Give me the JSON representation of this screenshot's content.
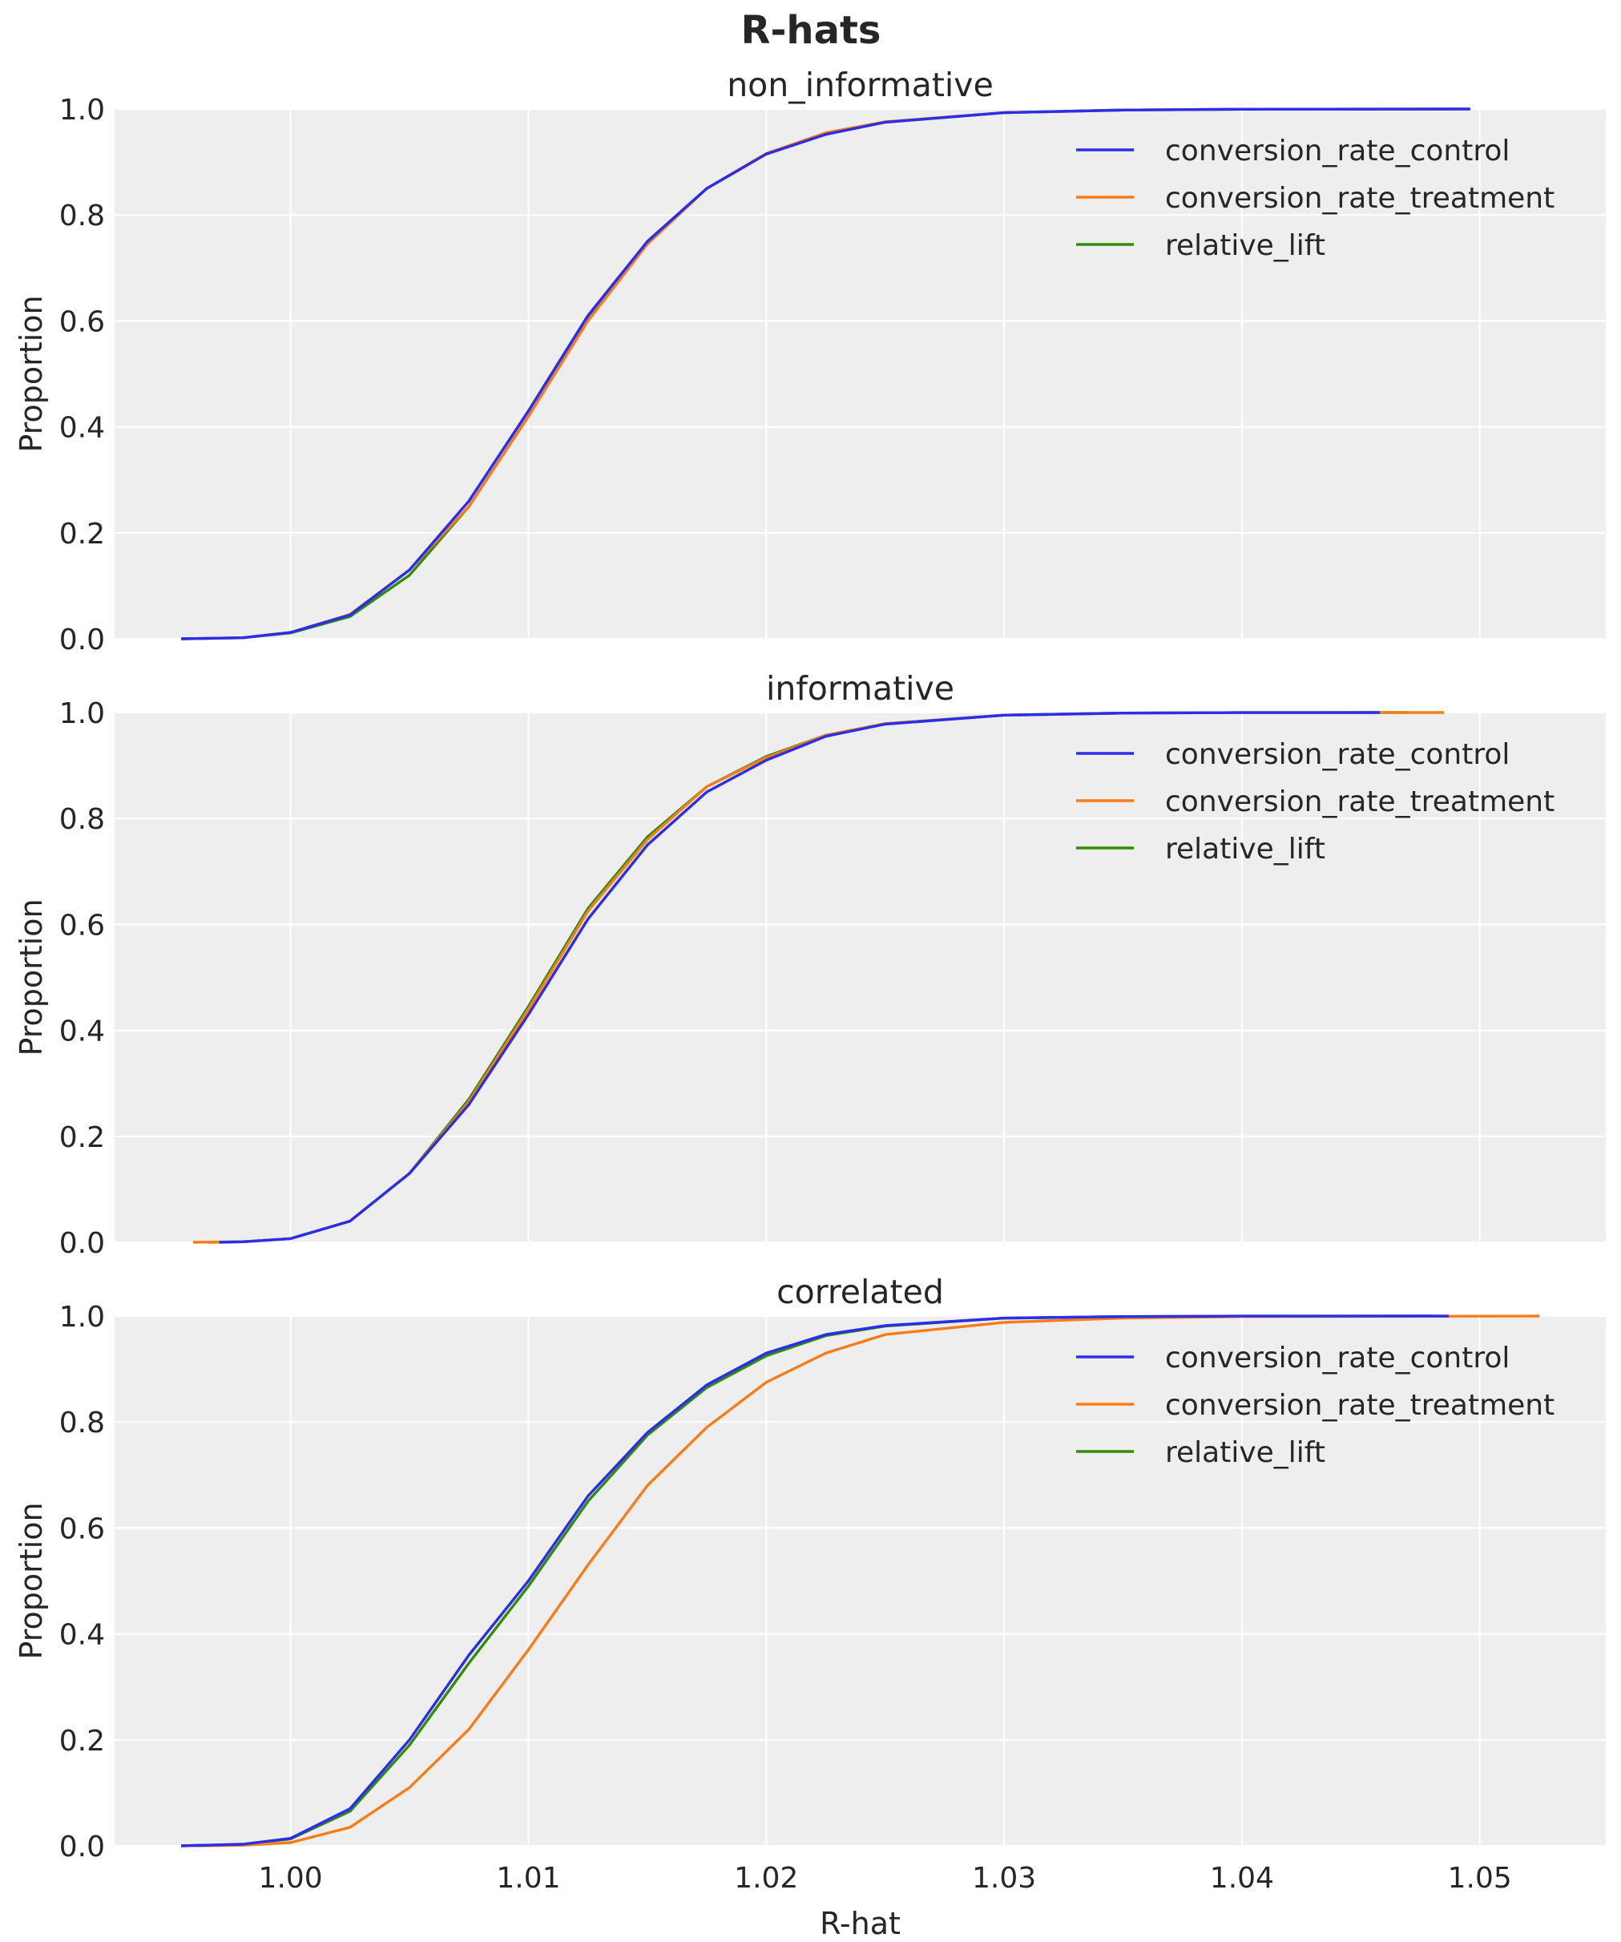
{
  "chart_data": [
    {
      "type": "line",
      "subtype": "ecdf",
      "title": "non_informative",
      "xlabel": "",
      "ylabel": "Proportion",
      "xlim": [
        0.9926,
        1.0553
      ],
      "ylim": [
        0.0,
        1.0
      ],
      "xticks": [
        "1.00",
        "1.01",
        "1.02",
        "1.03",
        "1.04",
        "1.05"
      ],
      "xtick_values": [
        1.0,
        1.01,
        1.02,
        1.03,
        1.04,
        1.05
      ],
      "xticks_visible": false,
      "yticks": [
        "0.0",
        "0.2",
        "0.4",
        "0.6",
        "0.8",
        "1.0"
      ],
      "ytick_values": [
        0.0,
        0.2,
        0.4,
        0.6,
        0.8,
        1.0
      ],
      "grid": true,
      "legend_position": "top-right",
      "series": [
        {
          "name": "conversion_rate_control",
          "color": "#2a2eec",
          "x": [
            0.9954,
            0.998,
            1.0,
            1.0025,
            1.005,
            1.0075,
            1.01,
            1.0125,
            1.015,
            1.0175,
            1.02,
            1.0225,
            1.025,
            1.03,
            1.035,
            1.04,
            1.0496
          ],
          "y": [
            0.0,
            0.002,
            0.012,
            0.045,
            0.13,
            0.26,
            0.43,
            0.61,
            0.75,
            0.85,
            0.915,
            0.952,
            0.975,
            0.993,
            0.998,
            0.9995,
            1.0
          ]
        },
        {
          "name": "conversion_rate_treatment",
          "color": "#fa7c17",
          "x": [
            0.9954,
            0.998,
            1.0,
            1.0025,
            1.005,
            1.0075,
            1.01,
            1.0125,
            1.015,
            1.0175,
            1.02,
            1.0225,
            1.025,
            1.03,
            1.035,
            1.04,
            1.0496
          ],
          "y": [
            0.0,
            0.002,
            0.012,
            0.046,
            0.13,
            0.25,
            0.42,
            0.6,
            0.745,
            0.85,
            0.916,
            0.955,
            0.976,
            0.993,
            0.998,
            0.9995,
            1.0
          ]
        },
        {
          "name": "relative_lift",
          "color": "#328c06",
          "x": [
            0.9954,
            0.998,
            1.0,
            1.0025,
            1.005,
            1.0075,
            1.01,
            1.0125,
            1.015,
            1.0175,
            1.02,
            1.0225,
            1.025,
            1.03,
            1.035,
            1.04,
            1.049
          ],
          "y": [
            0.0,
            0.002,
            0.011,
            0.042,
            0.12,
            0.25,
            0.42,
            0.605,
            0.75,
            0.85,
            0.915,
            0.953,
            0.975,
            0.993,
            0.998,
            0.9995,
            1.0
          ]
        }
      ]
    },
    {
      "type": "line",
      "subtype": "ecdf",
      "title": "informative",
      "xlabel": "",
      "ylabel": "Proportion",
      "xlim": [
        0.9926,
        1.0553
      ],
      "ylim": [
        0.0,
        1.0
      ],
      "xticks": [
        "1.00",
        "1.01",
        "1.02",
        "1.03",
        "1.04",
        "1.05"
      ],
      "xtick_values": [
        1.0,
        1.01,
        1.02,
        1.03,
        1.04,
        1.05
      ],
      "xticks_visible": false,
      "yticks": [
        "0.0",
        "0.2",
        "0.4",
        "0.6",
        "0.8",
        "1.0"
      ],
      "ytick_values": [
        0.0,
        0.2,
        0.4,
        0.6,
        0.8,
        1.0
      ],
      "grid": true,
      "legend_position": "top-right",
      "series": [
        {
          "name": "conversion_rate_control",
          "color": "#2a2eec",
          "x": [
            0.997,
            0.998,
            1.0,
            1.0025,
            1.005,
            1.0075,
            1.01,
            1.0125,
            1.015,
            1.0175,
            1.02,
            1.0225,
            1.025,
            1.03,
            1.035,
            1.04,
            1.0458
          ],
          "y": [
            0.0,
            0.001,
            0.007,
            0.04,
            0.13,
            0.26,
            0.43,
            0.61,
            0.75,
            0.85,
            0.91,
            0.955,
            0.978,
            0.995,
            0.999,
            0.9998,
            1.0
          ]
        },
        {
          "name": "conversion_rate_treatment",
          "color": "#fa7c17",
          "x": [
            0.9959,
            0.998,
            1.0,
            1.0025,
            1.005,
            1.0075,
            1.01,
            1.0125,
            1.015,
            1.0175,
            1.02,
            1.0225,
            1.025,
            1.03,
            1.035,
            1.04,
            1.0485
          ],
          "y": [
            0.0,
            0.001,
            0.007,
            0.04,
            0.13,
            0.265,
            0.44,
            0.625,
            0.76,
            0.86,
            0.915,
            0.957,
            0.979,
            0.995,
            0.999,
            0.9998,
            1.0
          ]
        },
        {
          "name": "relative_lift",
          "color": "#328c06",
          "x": [
            0.9965,
            0.998,
            1.0,
            1.0025,
            1.005,
            1.0075,
            1.01,
            1.0125,
            1.015,
            1.0175,
            1.02,
            1.0225,
            1.025,
            1.03,
            1.035,
            1.04,
            1.047
          ],
          "y": [
            0.0,
            0.001,
            0.007,
            0.04,
            0.13,
            0.27,
            0.445,
            0.63,
            0.765,
            0.86,
            0.917,
            0.957,
            0.979,
            0.995,
            0.999,
            0.9998,
            1.0
          ]
        }
      ]
    },
    {
      "type": "line",
      "subtype": "ecdf",
      "title": "correlated",
      "xlabel": "R-hat",
      "ylabel": "Proportion",
      "xlim": [
        0.9926,
        1.0553
      ],
      "ylim": [
        0.0,
        1.0
      ],
      "xticks": [
        "1.00",
        "1.01",
        "1.02",
        "1.03",
        "1.04",
        "1.05"
      ],
      "xtick_values": [
        1.0,
        1.01,
        1.02,
        1.03,
        1.04,
        1.05
      ],
      "xticks_visible": true,
      "yticks": [
        "0.0",
        "0.2",
        "0.4",
        "0.6",
        "0.8",
        "1.0"
      ],
      "ytick_values": [
        0.0,
        0.2,
        0.4,
        0.6,
        0.8,
        1.0
      ],
      "grid": true,
      "legend_position": "top-right",
      "series": [
        {
          "name": "conversion_rate_control",
          "color": "#2a2eec",
          "x": [
            0.9954,
            0.998,
            1.0,
            1.0025,
            1.005,
            1.0075,
            1.01,
            1.0125,
            1.015,
            1.0175,
            1.02,
            1.0225,
            1.025,
            1.03,
            1.035,
            1.04,
            1.0487
          ],
          "y": [
            0.0,
            0.003,
            0.014,
            0.07,
            0.2,
            0.36,
            0.5,
            0.66,
            0.78,
            0.87,
            0.93,
            0.965,
            0.982,
            0.996,
            0.999,
            0.9998,
            1.0
          ]
        },
        {
          "name": "conversion_rate_treatment",
          "color": "#fa7c17",
          "x": [
            0.996,
            0.998,
            1.0,
            1.0025,
            1.005,
            1.0075,
            1.01,
            1.0125,
            1.015,
            1.0175,
            1.02,
            1.0225,
            1.025,
            1.03,
            1.035,
            1.04,
            1.0525
          ],
          "y": [
            0.0,
            0.001,
            0.006,
            0.035,
            0.11,
            0.22,
            0.37,
            0.53,
            0.68,
            0.79,
            0.875,
            0.93,
            0.965,
            0.988,
            0.996,
            0.999,
            1.0
          ]
        },
        {
          "name": "relative_lift",
          "color": "#328c06",
          "x": [
            0.9954,
            0.998,
            1.0,
            1.0025,
            1.005,
            1.0075,
            1.01,
            1.0125,
            1.015,
            1.0175,
            1.02,
            1.0225,
            1.025,
            1.03,
            1.035,
            1.04,
            1.048
          ],
          "y": [
            0.0,
            0.003,
            0.013,
            0.065,
            0.19,
            0.345,
            0.49,
            0.65,
            0.775,
            0.865,
            0.925,
            0.963,
            0.981,
            0.996,
            0.999,
            0.9998,
            1.0
          ]
        }
      ]
    }
  ],
  "figure": {
    "suptitle": "R-hats",
    "shared_xlabel": "R-hat",
    "panel_background": "#eeeeee",
    "grid_color": "#ffffff"
  }
}
